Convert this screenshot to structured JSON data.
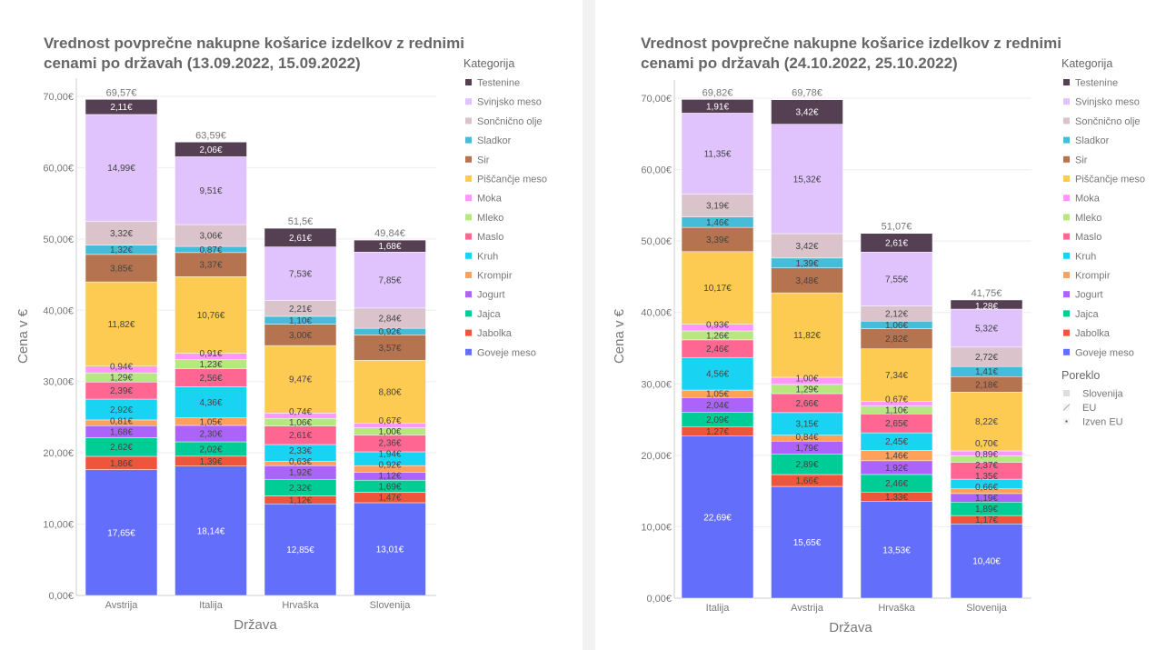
{
  "legend_title": "Kategorija",
  "categories_order": [
    "Goveje meso",
    "Jabolka",
    "Jajca",
    "Jogurt",
    "Krompir",
    "Kruh",
    "Maslo",
    "Mleko",
    "Moka",
    "Piščančje meso",
    "Sir",
    "Sladkor",
    "Sončnično olje",
    "Svinjsko meso",
    "Testenine"
  ],
  "colors": {
    "Goveje meso": "#636efa",
    "Jabolka": "#ef553b",
    "Jajca": "#00cc96",
    "Jogurt": "#ab63fa",
    "Krompir": "#ffa15a",
    "Kruh": "#19d3f3",
    "Maslo": "#ff6692",
    "Mleko": "#b6e880",
    "Moka": "#ff97ff",
    "Piščančje meso": "#fecb52",
    "Sir": "#b6734f",
    "Sladkor": "#45bcd8",
    "Sončnično olje": "#dbc3cc",
    "Svinjsko meso": "#e0c3fd",
    "Testenine": "#553f52"
  },
  "chart_data": [
    {
      "type": "bar",
      "stacked": true,
      "title": [
        "Vrednost povprečne nakupne košarice izdelkov z rednimi",
        "cenami po državah (13.09.2022, 15.09.2022)"
      ],
      "xlabel": "Država",
      "ylabel": "Cena v €",
      "ylim": [
        0,
        70
      ],
      "yticks": [
        "0,00€",
        "10,00€",
        "20,00€",
        "30,00€",
        "40,00€",
        "50,00€",
        "60,00€",
        "70,00€"
      ],
      "categories": [
        "Avstrija",
        "Italija",
        "Hrvaška",
        "Slovenija"
      ],
      "totals": [
        "69,57€",
        "63,59€",
        "51,5€",
        "49,84€"
      ],
      "series": [
        {
          "name": "Goveje meso",
          "values": [
            17.65,
            18.14,
            12.85,
            13.01
          ]
        },
        {
          "name": "Jabolka",
          "values": [
            1.86,
            1.39,
            1.12,
            1.47
          ]
        },
        {
          "name": "Jajca",
          "values": [
            2.62,
            2.02,
            2.32,
            1.69
          ]
        },
        {
          "name": "Jogurt",
          "values": [
            1.68,
            2.3,
            1.92,
            1.12
          ]
        },
        {
          "name": "Krompir",
          "values": [
            0.81,
            1.05,
            0.63,
            0.92
          ]
        },
        {
          "name": "Kruh",
          "values": [
            2.92,
            4.36,
            2.33,
            1.94
          ]
        },
        {
          "name": "Maslo",
          "values": [
            2.39,
            2.56,
            2.61,
            2.36
          ]
        },
        {
          "name": "Mleko",
          "values": [
            1.29,
            1.23,
            1.06,
            1.0
          ]
        },
        {
          "name": "Moka",
          "values": [
            0.94,
            0.91,
            0.74,
            0.67
          ]
        },
        {
          "name": "Piščančje meso",
          "values": [
            11.82,
            10.76,
            9.47,
            8.8
          ]
        },
        {
          "name": "Sir",
          "values": [
            3.85,
            3.37,
            3.0,
            3.57
          ]
        },
        {
          "name": "Sladkor",
          "values": [
            1.32,
            0.87,
            1.1,
            0.92
          ]
        },
        {
          "name": "Sončnično olje",
          "values": [
            3.32,
            3.06,
            2.21,
            2.84
          ]
        },
        {
          "name": "Svinjsko meso",
          "values": [
            14.99,
            9.51,
            7.53,
            7.85
          ]
        },
        {
          "name": "Testenine",
          "values": [
            2.11,
            2.06,
            2.61,
            1.68
          ]
        }
      ],
      "legend": {
        "title": "Kategorija",
        "position": "right"
      }
    },
    {
      "type": "bar",
      "stacked": true,
      "title": [
        "Vrednost povprečne nakupne košarice izdelkov z rednimi",
        "cenami po državah (24.10.2022, 25.10.2022)"
      ],
      "xlabel": "Država",
      "ylabel": "Cena v €",
      "ylim": [
        0,
        70
      ],
      "yticks": [
        "0,00€",
        "10,00€",
        "20,00€",
        "30,00€",
        "40,00€",
        "50,00€",
        "60,00€",
        "70,00€"
      ],
      "categories": [
        "Italija",
        "Avstrija",
        "Hrvaška",
        "Slovenija"
      ],
      "totals": [
        "69,82€",
        "69,78€",
        "51,07€",
        "41,75€"
      ],
      "series": [
        {
          "name": "Goveje meso",
          "values": [
            22.69,
            15.65,
            13.53,
            10.4
          ]
        },
        {
          "name": "Jabolka",
          "values": [
            1.27,
            1.66,
            1.33,
            1.17
          ]
        },
        {
          "name": "Jajca",
          "values": [
            2.09,
            2.89,
            2.46,
            1.89
          ]
        },
        {
          "name": "Jogurt",
          "values": [
            2.04,
            1.79,
            1.92,
            1.19
          ]
        },
        {
          "name": "Krompir",
          "values": [
            1.05,
            0.84,
            1.46,
            0.66
          ]
        },
        {
          "name": "Kruh",
          "values": [
            4.56,
            3.15,
            2.45,
            1.35
          ]
        },
        {
          "name": "Maslo",
          "values": [
            2.46,
            2.66,
            2.65,
            2.37
          ]
        },
        {
          "name": "Mleko",
          "values": [
            1.26,
            1.29,
            1.1,
            0.89
          ]
        },
        {
          "name": "Moka",
          "values": [
            0.93,
            1.0,
            0.67,
            0.7
          ]
        },
        {
          "name": "Piščančje meso",
          "values": [
            10.17,
            11.82,
            7.34,
            8.22
          ]
        },
        {
          "name": "Sir",
          "values": [
            3.39,
            3.48,
            2.82,
            2.18
          ]
        },
        {
          "name": "Sladkor",
          "values": [
            1.46,
            1.39,
            1.06,
            1.41
          ]
        },
        {
          "name": "Sončnično olje",
          "values": [
            3.19,
            3.42,
            2.12,
            2.72
          ]
        },
        {
          "name": "Svinjsko meso",
          "values": [
            11.35,
            15.32,
            7.55,
            5.32
          ]
        },
        {
          "name": "Testenine",
          "values": [
            1.91,
            3.42,
            2.61,
            1.28
          ]
        }
      ],
      "legend": {
        "title": "Kategorija",
        "position": "right"
      },
      "legend2": {
        "title": "Poreklo",
        "items": [
          "Slovenija",
          "EU",
          "Izven EU"
        ]
      }
    }
  ]
}
